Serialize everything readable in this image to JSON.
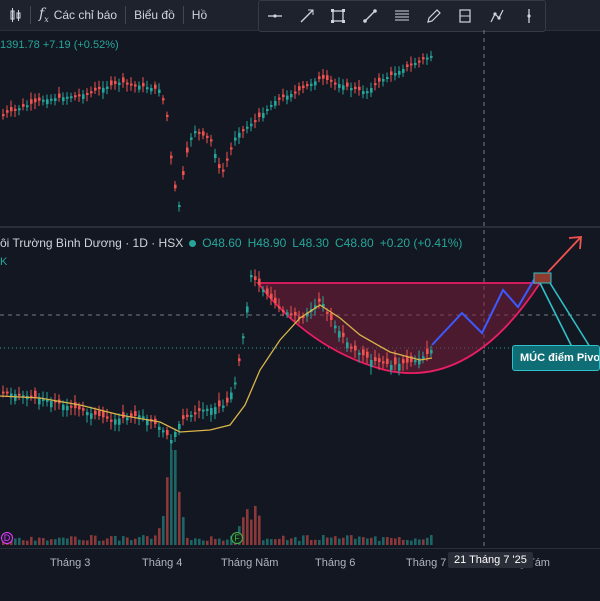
{
  "toolbar": {
    "indicators_label": "Các chỉ báo",
    "chart_type_label": "Biểu đồ",
    "more_label": "Hồ",
    "fx_symbol": "f",
    "fx_sub": "x"
  },
  "drawing_tools": [
    "horizontal-line-icon",
    "trend-line-icon",
    "rectangle-icon",
    "brush-icon",
    "fib-retracement-icon",
    "pencil-icon",
    "long-position-icon",
    "path-icon",
    "vertical-line-icon"
  ],
  "upper_pane": {
    "price_change": "1391.78  +7.19 (+0.52%)"
  },
  "lower_pane": {
    "symbol_title": "ôi Trường Bình Dương · 1D · HSX",
    "ohlc": {
      "o": "O48.60",
      "h": "H48.90",
      "l": "L48.30",
      "c": "C48.80",
      "change": "+0.20 (+0.41%)"
    },
    "volume_label": "K"
  },
  "annotation": {
    "text": "MÚC  điểm Pivot"
  },
  "x_axis": {
    "labels": [
      "Tháng 3",
      "Tháng 4",
      "Tháng Năm",
      "Tháng 6",
      "Tháng 7",
      "g Tám"
    ],
    "crosshair_date": "21 Tháng 7 '25"
  },
  "event_badges": [
    {
      "letter": "D",
      "color": "#e040fb"
    },
    {
      "letter": "F",
      "color": "#4caf50"
    }
  ],
  "colors": {
    "up": "#26a69a",
    "down": "#ef5350",
    "ma": "#d9b54a",
    "arrow_red": "#ef5350",
    "path_blue": "#2962ff",
    "cup_fill": "#7b1e3a"
  }
}
